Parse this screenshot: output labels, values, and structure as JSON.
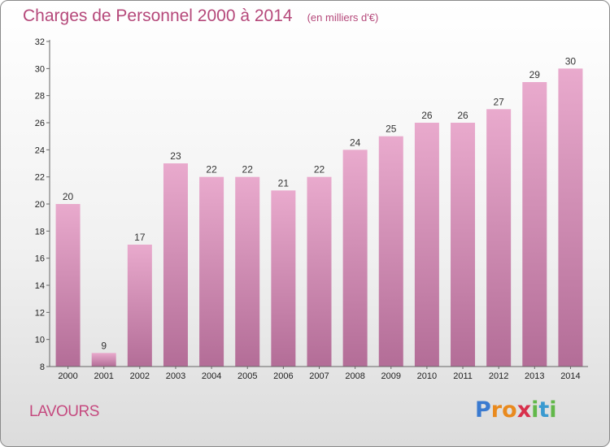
{
  "title": "Charges de Personnel 2000 à 2014",
  "subtitle": "(en milliers d'€)",
  "place_label": "LAVOURS",
  "logo": {
    "text": "Proxiti",
    "letters": [
      {
        "ch": "P",
        "color": "#3a7ad0"
      },
      {
        "ch": "r",
        "color": "#e98a1e"
      },
      {
        "ch": "o",
        "color": "#e98a1e"
      },
      {
        "ch": "x",
        "color": "#d8304c"
      },
      {
        "ch": "i",
        "color": "#62b84a"
      },
      {
        "ch": "t",
        "color": "#3a9ad0"
      },
      {
        "ch": "i",
        "color": "#62b84a"
      }
    ]
  },
  "colors": {
    "title": "#b5487a",
    "bar_top": "#e9aacd",
    "bar_bottom": "#b36d97",
    "place": "#c54a7f"
  },
  "chart_data": {
    "type": "bar",
    "title": "Charges de Personnel 2000 à 2014",
    "subtitle": "(en milliers d'€)",
    "categories": [
      "2000",
      "2001",
      "2002",
      "2003",
      "2004",
      "2005",
      "2006",
      "2007",
      "2008",
      "2009",
      "2010",
      "2011",
      "2012",
      "2013",
      "2014"
    ],
    "values": [
      20,
      9,
      17,
      23,
      22,
      22,
      21,
      22,
      24,
      25,
      26,
      26,
      27,
      29,
      30
    ],
    "ylim": [
      8,
      32
    ],
    "yticks": [
      8,
      10,
      12,
      14,
      16,
      18,
      20,
      22,
      24,
      26,
      28,
      30,
      32
    ],
    "grid": false,
    "data_labels": true
  }
}
